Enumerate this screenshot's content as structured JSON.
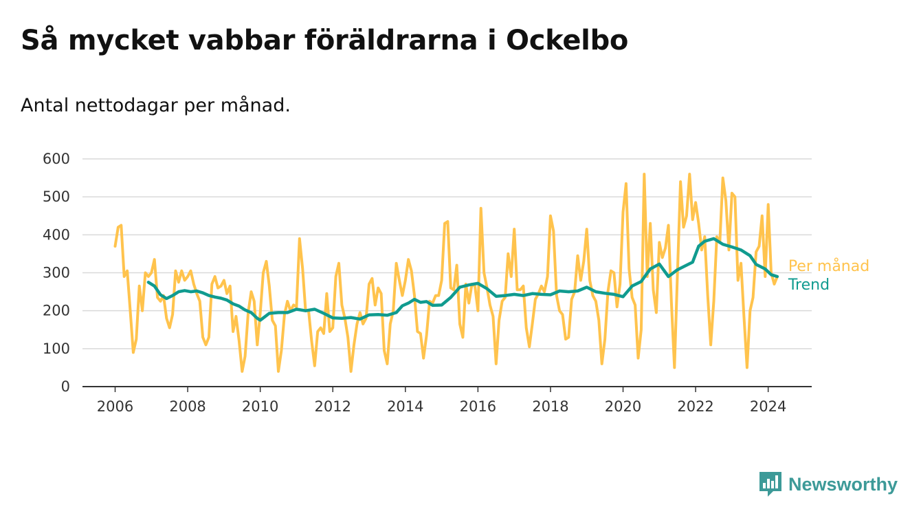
{
  "title": "Så mycket vabbar föräldrarna i Ockelbo",
  "subtitle": "Antal nettodagar per månad.",
  "logo_text": "Newsworthy",
  "colors": {
    "monthly": "#ffc34d",
    "trend": "#109b8f",
    "grid": "#d9d9d9",
    "axis": "#333333",
    "logo": "#3d9a98"
  },
  "chart_data": {
    "type": "line",
    "title": "Så mycket vabbar föräldrarna i Ockelbo",
    "subtitle": "Antal nettodagar per månad.",
    "xlabel": "",
    "ylabel": "",
    "xlim": [
      2005.1,
      2025.2
    ],
    "ylim": [
      0,
      600
    ],
    "y_ticks": [
      0,
      100,
      200,
      300,
      400,
      500,
      600
    ],
    "x_ticks": [
      2006,
      2008,
      2010,
      2012,
      2014,
      2016,
      2018,
      2020,
      2022,
      2024
    ],
    "grid": true,
    "legend": "inline-right",
    "series": [
      {
        "name": "Per månad",
        "color": "#ffc34d",
        "points": [
          [
            2006.0,
            370
          ],
          [
            2006.083,
            420
          ],
          [
            2006.167,
            425
          ],
          [
            2006.25,
            290
          ],
          [
            2006.333,
            305
          ],
          [
            2006.417,
            200
          ],
          [
            2006.5,
            90
          ],
          [
            2006.583,
            125
          ],
          [
            2006.667,
            265
          ],
          [
            2006.75,
            200
          ],
          [
            2006.833,
            300
          ],
          [
            2006.917,
            290
          ],
          [
            2007.0,
            300
          ],
          [
            2007.083,
            335
          ],
          [
            2007.167,
            235
          ],
          [
            2007.25,
            225
          ],
          [
            2007.333,
            240
          ],
          [
            2007.417,
            180
          ],
          [
            2007.5,
            155
          ],
          [
            2007.583,
            190
          ],
          [
            2007.667,
            305
          ],
          [
            2007.75,
            275
          ],
          [
            2007.833,
            305
          ],
          [
            2007.917,
            280
          ],
          [
            2008.0,
            290
          ],
          [
            2008.083,
            305
          ],
          [
            2008.167,
            270
          ],
          [
            2008.25,
            245
          ],
          [
            2008.333,
            225
          ],
          [
            2008.417,
            130
          ],
          [
            2008.5,
            110
          ],
          [
            2008.583,
            130
          ],
          [
            2008.667,
            270
          ],
          [
            2008.75,
            290
          ],
          [
            2008.833,
            260
          ],
          [
            2008.917,
            265
          ],
          [
            2009.0,
            280
          ],
          [
            2009.083,
            245
          ],
          [
            2009.167,
            265
          ],
          [
            2009.25,
            145
          ],
          [
            2009.333,
            185
          ],
          [
            2009.417,
            120
          ],
          [
            2009.5,
            40
          ],
          [
            2009.583,
            80
          ],
          [
            2009.667,
            195
          ],
          [
            2009.75,
            250
          ],
          [
            2009.833,
            225
          ],
          [
            2009.917,
            110
          ],
          [
            2010.0,
            195
          ],
          [
            2010.083,
            300
          ],
          [
            2010.167,
            330
          ],
          [
            2010.25,
            265
          ],
          [
            2010.333,
            175
          ],
          [
            2010.417,
            160
          ],
          [
            2010.5,
            40
          ],
          [
            2010.583,
            95
          ],
          [
            2010.667,
            190
          ],
          [
            2010.75,
            225
          ],
          [
            2010.833,
            200
          ],
          [
            2010.917,
            215
          ],
          [
            2011.0,
            210
          ],
          [
            2011.083,
            390
          ],
          [
            2011.167,
            310
          ],
          [
            2011.25,
            200
          ],
          [
            2011.333,
            200
          ],
          [
            2011.417,
            120
          ],
          [
            2011.5,
            55
          ],
          [
            2011.583,
            145
          ],
          [
            2011.667,
            155
          ],
          [
            2011.75,
            140
          ],
          [
            2011.833,
            245
          ],
          [
            2011.917,
            145
          ],
          [
            2012.0,
            155
          ],
          [
            2012.083,
            290
          ],
          [
            2012.167,
            325
          ],
          [
            2012.25,
            215
          ],
          [
            2012.333,
            180
          ],
          [
            2012.417,
            130
          ],
          [
            2012.5,
            40
          ],
          [
            2012.583,
            110
          ],
          [
            2012.667,
            165
          ],
          [
            2012.75,
            195
          ],
          [
            2012.833,
            165
          ],
          [
            2012.917,
            180
          ],
          [
            2013.0,
            270
          ],
          [
            2013.083,
            285
          ],
          [
            2013.167,
            215
          ],
          [
            2013.25,
            260
          ],
          [
            2013.333,
            245
          ],
          [
            2013.417,
            95
          ],
          [
            2013.5,
            60
          ],
          [
            2013.583,
            165
          ],
          [
            2013.667,
            200
          ],
          [
            2013.75,
            325
          ],
          [
            2013.833,
            280
          ],
          [
            2013.917,
            240
          ],
          [
            2014.0,
            280
          ],
          [
            2014.083,
            335
          ],
          [
            2014.167,
            305
          ],
          [
            2014.25,
            240
          ],
          [
            2014.333,
            145
          ],
          [
            2014.417,
            140
          ],
          [
            2014.5,
            75
          ],
          [
            2014.583,
            135
          ],
          [
            2014.667,
            225
          ],
          [
            2014.75,
            220
          ],
          [
            2014.833,
            240
          ],
          [
            2014.917,
            240
          ],
          [
            2015.0,
            280
          ],
          [
            2015.083,
            430
          ],
          [
            2015.167,
            435
          ],
          [
            2015.25,
            260
          ],
          [
            2015.333,
            255
          ],
          [
            2015.417,
            320
          ],
          [
            2015.5,
            165
          ],
          [
            2015.583,
            130
          ],
          [
            2015.667,
            270
          ],
          [
            2015.75,
            220
          ],
          [
            2015.833,
            270
          ],
          [
            2015.917,
            265
          ],
          [
            2016.0,
            200
          ],
          [
            2016.083,
            470
          ],
          [
            2016.167,
            300
          ],
          [
            2016.25,
            260
          ],
          [
            2016.333,
            215
          ],
          [
            2016.417,
            185
          ],
          [
            2016.5,
            60
          ],
          [
            2016.583,
            175
          ],
          [
            2016.667,
            225
          ],
          [
            2016.75,
            235
          ],
          [
            2016.833,
            350
          ],
          [
            2016.917,
            290
          ],
          [
            2017.0,
            415
          ],
          [
            2017.083,
            255
          ],
          [
            2017.167,
            255
          ],
          [
            2017.25,
            265
          ],
          [
            2017.333,
            155
          ],
          [
            2017.417,
            105
          ],
          [
            2017.5,
            165
          ],
          [
            2017.583,
            230
          ],
          [
            2017.667,
            245
          ],
          [
            2017.75,
            265
          ],
          [
            2017.833,
            250
          ],
          [
            2017.917,
            290
          ],
          [
            2018.0,
            450
          ],
          [
            2018.083,
            410
          ],
          [
            2018.167,
            240
          ],
          [
            2018.25,
            200
          ],
          [
            2018.333,
            190
          ],
          [
            2018.417,
            125
          ],
          [
            2018.5,
            130
          ],
          [
            2018.583,
            230
          ],
          [
            2018.667,
            250
          ],
          [
            2018.75,
            345
          ],
          [
            2018.833,
            280
          ],
          [
            2018.917,
            330
          ],
          [
            2019.0,
            415
          ],
          [
            2019.083,
            280
          ],
          [
            2019.167,
            240
          ],
          [
            2019.25,
            225
          ],
          [
            2019.333,
            175
          ],
          [
            2019.417,
            60
          ],
          [
            2019.5,
            125
          ],
          [
            2019.583,
            250
          ],
          [
            2019.667,
            305
          ],
          [
            2019.75,
            300
          ],
          [
            2019.833,
            210
          ],
          [
            2019.917,
            270
          ],
          [
            2020.0,
            460
          ],
          [
            2020.083,
            535
          ],
          [
            2020.167,
            310
          ],
          [
            2020.25,
            235
          ],
          [
            2020.333,
            215
          ],
          [
            2020.417,
            75
          ],
          [
            2020.5,
            150
          ],
          [
            2020.583,
            560
          ],
          [
            2020.667,
            290
          ],
          [
            2020.75,
            430
          ],
          [
            2020.833,
            255
          ],
          [
            2020.917,
            195
          ],
          [
            2021.0,
            380
          ],
          [
            2021.083,
            340
          ],
          [
            2021.167,
            365
          ],
          [
            2021.25,
            425
          ],
          [
            2021.333,
            220
          ],
          [
            2021.417,
            50
          ],
          [
            2021.5,
            300
          ],
          [
            2021.583,
            540
          ],
          [
            2021.667,
            420
          ],
          [
            2021.75,
            450
          ],
          [
            2021.833,
            560
          ],
          [
            2021.917,
            440
          ],
          [
            2022.0,
            485
          ],
          [
            2022.083,
            430
          ],
          [
            2022.167,
            360
          ],
          [
            2022.25,
            395
          ],
          [
            2022.333,
            240
          ],
          [
            2022.417,
            110
          ],
          [
            2022.5,
            225
          ],
          [
            2022.583,
            395
          ],
          [
            2022.667,
            380
          ],
          [
            2022.75,
            550
          ],
          [
            2022.833,
            490
          ],
          [
            2022.917,
            360
          ],
          [
            2023.0,
            510
          ],
          [
            2023.083,
            500
          ],
          [
            2023.167,
            280
          ],
          [
            2023.25,
            325
          ],
          [
            2023.333,
            185
          ],
          [
            2023.417,
            50
          ],
          [
            2023.5,
            200
          ],
          [
            2023.583,
            235
          ],
          [
            2023.667,
            355
          ],
          [
            2023.75,
            370
          ],
          [
            2023.833,
            450
          ],
          [
            2023.917,
            290
          ],
          [
            2024.0,
            480
          ],
          [
            2024.083,
            300
          ],
          [
            2024.167,
            270
          ],
          [
            2024.25,
            290
          ]
        ]
      },
      {
        "name": "Trend",
        "color": "#109b8f",
        "points": [
          [
            2006.917,
            275
          ],
          [
            2007.083,
            265
          ],
          [
            2007.25,
            242
          ],
          [
            2007.417,
            232
          ],
          [
            2007.583,
            240
          ],
          [
            2007.75,
            250
          ],
          [
            2007.917,
            253
          ],
          [
            2008.083,
            250
          ],
          [
            2008.25,
            252
          ],
          [
            2008.417,
            247
          ],
          [
            2008.583,
            240
          ],
          [
            2008.75,
            236
          ],
          [
            2008.917,
            233
          ],
          [
            2009.083,
            228
          ],
          [
            2009.25,
            218
          ],
          [
            2009.417,
            212
          ],
          [
            2009.583,
            202
          ],
          [
            2009.75,
            195
          ],
          [
            2009.917,
            180
          ],
          [
            2010.0,
            175
          ],
          [
            2010.25,
            193
          ],
          [
            2010.5,
            195
          ],
          [
            2010.75,
            195
          ],
          [
            2011.0,
            204
          ],
          [
            2011.25,
            200
          ],
          [
            2011.5,
            204
          ],
          [
            2011.75,
            193
          ],
          [
            2012.0,
            181
          ],
          [
            2012.25,
            180
          ],
          [
            2012.5,
            182
          ],
          [
            2012.75,
            178
          ],
          [
            2013.0,
            189
          ],
          [
            2013.25,
            190
          ],
          [
            2013.5,
            188
          ],
          [
            2013.75,
            195
          ],
          [
            2013.917,
            213
          ],
          [
            2014.083,
            220
          ],
          [
            2014.25,
            230
          ],
          [
            2014.417,
            222
          ],
          [
            2014.583,
            224
          ],
          [
            2014.75,
            214
          ],
          [
            2015.0,
            215
          ],
          [
            2015.25,
            235
          ],
          [
            2015.5,
            262
          ],
          [
            2015.75,
            268
          ],
          [
            2016.0,
            272
          ],
          [
            2016.25,
            258
          ],
          [
            2016.5,
            238
          ],
          [
            2016.75,
            240
          ],
          [
            2017.0,
            243
          ],
          [
            2017.25,
            240
          ],
          [
            2017.5,
            245
          ],
          [
            2017.75,
            243
          ],
          [
            2018.0,
            242
          ],
          [
            2018.25,
            252
          ],
          [
            2018.5,
            250
          ],
          [
            2018.75,
            252
          ],
          [
            2019.0,
            262
          ],
          [
            2019.25,
            250
          ],
          [
            2019.5,
            246
          ],
          [
            2019.75,
            243
          ],
          [
            2020.0,
            237
          ],
          [
            2020.25,
            265
          ],
          [
            2020.5,
            277
          ],
          [
            2020.75,
            310
          ],
          [
            2021.0,
            323
          ],
          [
            2021.25,
            290
          ],
          [
            2021.5,
            308
          ],
          [
            2021.75,
            320
          ],
          [
            2021.917,
            328
          ],
          [
            2022.083,
            370
          ],
          [
            2022.25,
            383
          ],
          [
            2022.5,
            390
          ],
          [
            2022.75,
            375
          ],
          [
            2023.0,
            368
          ],
          [
            2023.25,
            360
          ],
          [
            2023.5,
            345
          ],
          [
            2023.667,
            322
          ],
          [
            2023.917,
            310
          ],
          [
            2024.083,
            295
          ],
          [
            2024.25,
            290
          ]
        ]
      }
    ]
  }
}
